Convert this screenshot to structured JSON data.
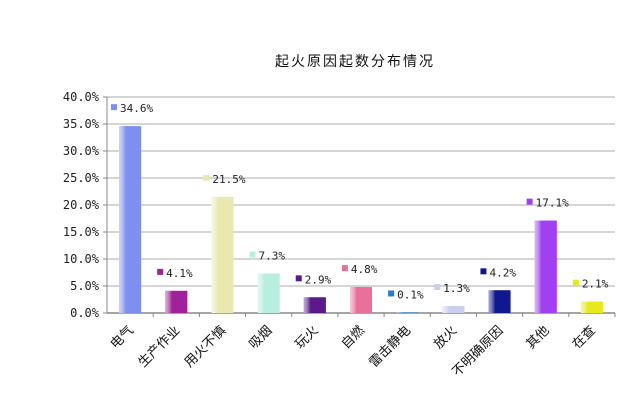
{
  "chart_data": {
    "type": "bar",
    "title": "起火原因起数分布情况",
    "xlabel": "",
    "ylabel": "",
    "ylim": [
      0,
      40
    ],
    "yticks": [
      "0.0%",
      "5.0%",
      "10.0%",
      "15.0%",
      "20.0%",
      "25.0%",
      "30.0%",
      "35.0%",
      "40.0%"
    ],
    "grid": true,
    "categories": [
      "电气",
      "生产作业",
      "用火不慎",
      "吸烟",
      "玩火",
      "自燃",
      "雷击静电",
      "放火",
      "不明确原因",
      "其他",
      "在查"
    ],
    "values": [
      34.6,
      4.1,
      21.5,
      7.3,
      2.9,
      4.8,
      0.1,
      1.3,
      4.2,
      17.1,
      2.1
    ],
    "data_labels": [
      "34.6%",
      "4.1%",
      "21.5%",
      "7.3%",
      "2.9%",
      "4.8%",
      "0.1%",
      "1.3%",
      "4.2%",
      "17.1%",
      "2.1%"
    ],
    "colors": [
      "#7f8fef",
      "#a0229a",
      "#e8e8b0",
      "#b8eee0",
      "#5a1a8a",
      "#e8709a",
      "#2a7ad8",
      "#c8d0ee",
      "#101890",
      "#a040f0",
      "#e8e820"
    ]
  }
}
